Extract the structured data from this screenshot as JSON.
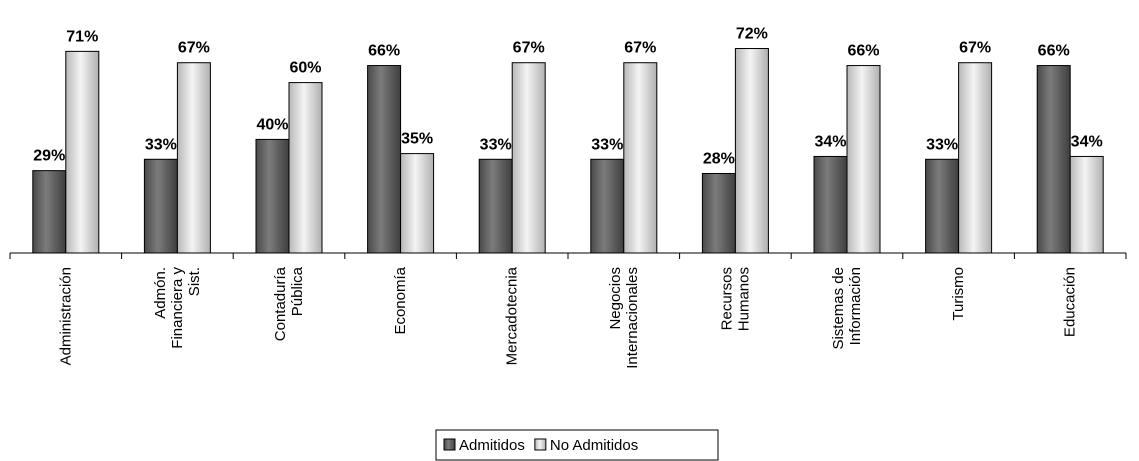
{
  "chart_data": {
    "type": "bar",
    "categories": [
      [
        "Administración"
      ],
      [
        "Admón.",
        "Financiera y",
        "Sist."
      ],
      [
        "Contaduría",
        "Pública"
      ],
      [
        "Economía"
      ],
      [
        "Mercadotecnia"
      ],
      [
        "Negocios",
        "Internacionales"
      ],
      [
        "Recursos",
        "Humanos"
      ],
      [
        "Sistemas de",
        "Información"
      ],
      [
        "Turismo"
      ],
      [
        "Educación"
      ]
    ],
    "series": [
      {
        "name": "Admitidos",
        "values": [
          29,
          33,
          40,
          66,
          33,
          33,
          28,
          34,
          33,
          66
        ],
        "color": "#6e6e6e"
      },
      {
        "name": "No Admitidos",
        "values": [
          71,
          67,
          60,
          35,
          67,
          67,
          72,
          66,
          67,
          34
        ],
        "color": "#e4e4e4"
      }
    ],
    "value_suffix": "%",
    "ylim": [
      0,
      72
    ],
    "grid": false,
    "legend": "bottom-center"
  }
}
